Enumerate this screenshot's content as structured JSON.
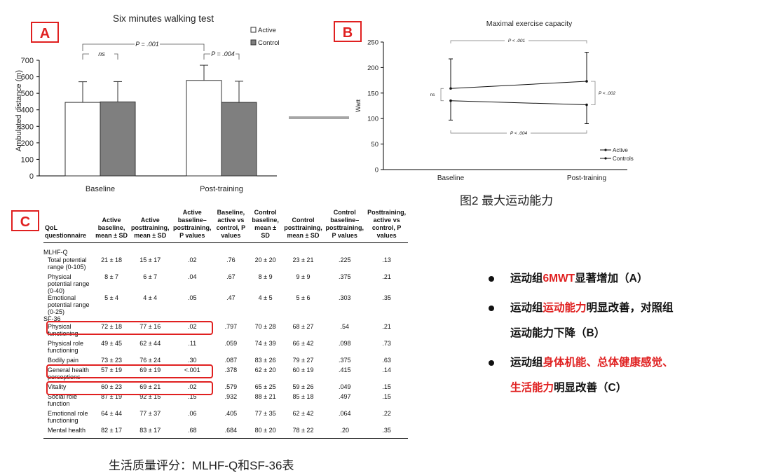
{
  "panels": {
    "a": "A",
    "b": "B",
    "c": "C"
  },
  "chart_data": [
    {
      "type": "bar",
      "title": "Six minutes walking test",
      "ylabel": "Ambulated distance (m)",
      "xlabel": "",
      "categories": [
        "Baseline",
        "Post-training"
      ],
      "ylim": [
        0,
        700
      ],
      "yticks": [
        0,
        100,
        200,
        300,
        400,
        500,
        600,
        700
      ],
      "series": [
        {
          "name": "Active",
          "values": [
            445,
            578
          ],
          "errors": [
            125,
            92
          ],
          "color": "#ffffff"
        },
        {
          "name": "Control",
          "values": [
            448,
            445
          ],
          "errors": [
            123,
            128
          ],
          "color": "#7f7f7f"
        }
      ],
      "legend_position": "top-right",
      "annotations": [
        {
          "text": "P = .001",
          "between": [
            "Baseline Active",
            "Post-training Active"
          ]
        },
        {
          "text": "ns",
          "between": [
            "Baseline Active",
            "Baseline Control"
          ]
        },
        {
          "text": "P = .004",
          "between": [
            "Post-training Active",
            "Post-training Control"
          ]
        }
      ]
    },
    {
      "type": "line",
      "title": "Maximal exercise capacity",
      "ylabel": "Watt",
      "xlabel": "",
      "categories": [
        "Baseline",
        "Post-training"
      ],
      "ylim": [
        0,
        250
      ],
      "yticks": [
        0,
        50,
        100,
        150,
        200,
        250
      ],
      "series": [
        {
          "name": "Active",
          "values": [
            159,
            173
          ],
          "errors": [
            58,
            57
          ]
        },
        {
          "name": "Controls",
          "values": [
            135,
            127
          ],
          "errors": [
            38,
            37
          ]
        }
      ],
      "legend_position": "bottom-right",
      "annotations": [
        {
          "text": "P < .001",
          "between": [
            "Baseline Active",
            "Post-training Active"
          ]
        },
        {
          "text": "ns",
          "between": [
            "Baseline Active",
            "Baseline Controls"
          ]
        },
        {
          "text": "P < .002",
          "between": [
            "Post-training Active",
            "Post-training Controls"
          ]
        },
        {
          "text": "P < .004",
          "between": [
            "Baseline Controls",
            "Post-training Controls"
          ]
        }
      ]
    },
    {
      "type": "table",
      "headers": [
        "QoL questionnaire",
        "Active baseline, mean ± SD",
        "Active posttraining, mean ± SD",
        "Active baseline–posttraining, P values",
        "Baseline, active vs control, P values",
        "Control baseline, mean ± SD",
        "Control posttraining, mean ± SD",
        "Control baseline–posttraining, P values",
        "Posttraining, active vs control, P values"
      ],
      "rows": [
        {
          "section": "MLHF-Q"
        },
        {
          "cells": [
            "Total potential range (0-105)",
            "21 ± 18",
            "15 ± 17",
            ".02",
            ".76",
            "20 ± 20",
            "23 ± 21",
            ".225",
            ".13"
          ]
        },
        {
          "cells": [
            "Physical potential range (0-40)",
            "8 ± 7",
            "6 ± 7",
            ".04",
            ".67",
            "8 ± 9",
            "9 ± 9",
            ".375",
            ".21"
          ]
        },
        {
          "cells": [
            "Emotional potential range (0-25)",
            "5 ± 4",
            "4 ± 4",
            ".05",
            ".47",
            "4 ± 5",
            "5 ± 6",
            ".303",
            ".35"
          ]
        },
        {
          "section": "SF-36"
        },
        {
          "cells": [
            "Physical functioning",
            "72 ± 18",
            "77 ± 16",
            ".02",
            ".797",
            "70 ± 28",
            "68 ± 27",
            ".54",
            ".21"
          ],
          "highlight": true
        },
        {
          "cells": [
            "Physical role functioning",
            "49 ± 45",
            "62 ± 44",
            ".11",
            ".059",
            "74 ± 39",
            "66 ± 42",
            ".098",
            ".73"
          ]
        },
        {
          "cells": [
            "Bodily pain",
            "73 ± 23",
            "76 ± 24",
            ".30",
            ".087",
            "83 ± 26",
            "79 ± 27",
            ".375",
            ".63"
          ]
        },
        {
          "cells": [
            "General health perceptions",
            "57 ± 19",
            "69 ± 19",
            "<.001",
            ".378",
            "62 ± 20",
            "60 ± 19",
            ".415",
            ".14"
          ],
          "highlight": true
        },
        {
          "cells": [
            "Vitality",
            "60 ± 23",
            "69 ± 21",
            ".02",
            ".579",
            "65 ± 25",
            "59 ± 26",
            ".049",
            ".15"
          ],
          "highlight": true
        },
        {
          "cells": [
            "Social role function",
            "87 ± 19",
            "92 ± 15",
            ".15",
            ".932",
            "88 ± 21",
            "85 ± 18",
            ".497",
            ".15"
          ]
        },
        {
          "cells": [
            "Emotional role functioning",
            "64 ± 44",
            "77 ± 37",
            ".06",
            ".405",
            "77 ± 35",
            "62 ± 42",
            ".064",
            ".22"
          ]
        },
        {
          "cells": [
            "Mental health",
            "82 ± 17",
            "83 ± 17",
            ".68",
            ".684",
            "80 ± 20",
            "78 ± 22",
            ".20",
            ".35"
          ]
        }
      ]
    }
  ],
  "captions": {
    "figure2": "图2 最大运动能力",
    "table": "生活质量评分：MLHF-Q和SF-36表"
  },
  "bullets": [
    {
      "parts": [
        {
          "text": "运动组",
          "red": false
        },
        {
          "text": "6MWT",
          "red": true
        },
        {
          "text": "显著增加（A）",
          "red": false
        }
      ]
    },
    {
      "parts": [
        {
          "text": "运动组",
          "red": false
        },
        {
          "text": "运动能力",
          "red": true
        },
        {
          "text": "明显改善，对照组",
          "red": false
        }
      ],
      "line2": [
        {
          "text": "运动能力下降（B）",
          "red": false
        }
      ]
    },
    {
      "parts": [
        {
          "text": "运动组",
          "red": false
        },
        {
          "text": "身体机能、总体健康感觉、",
          "red": true
        }
      ],
      "line2": [
        {
          "text": "生活能力",
          "red": true
        },
        {
          "text": "明显改善（C）",
          "red": false
        }
      ]
    }
  ],
  "colors": {
    "accent_red": "#e02020",
    "control_bar": "#7f7f7f",
    "connector": "#a6a6a6"
  }
}
